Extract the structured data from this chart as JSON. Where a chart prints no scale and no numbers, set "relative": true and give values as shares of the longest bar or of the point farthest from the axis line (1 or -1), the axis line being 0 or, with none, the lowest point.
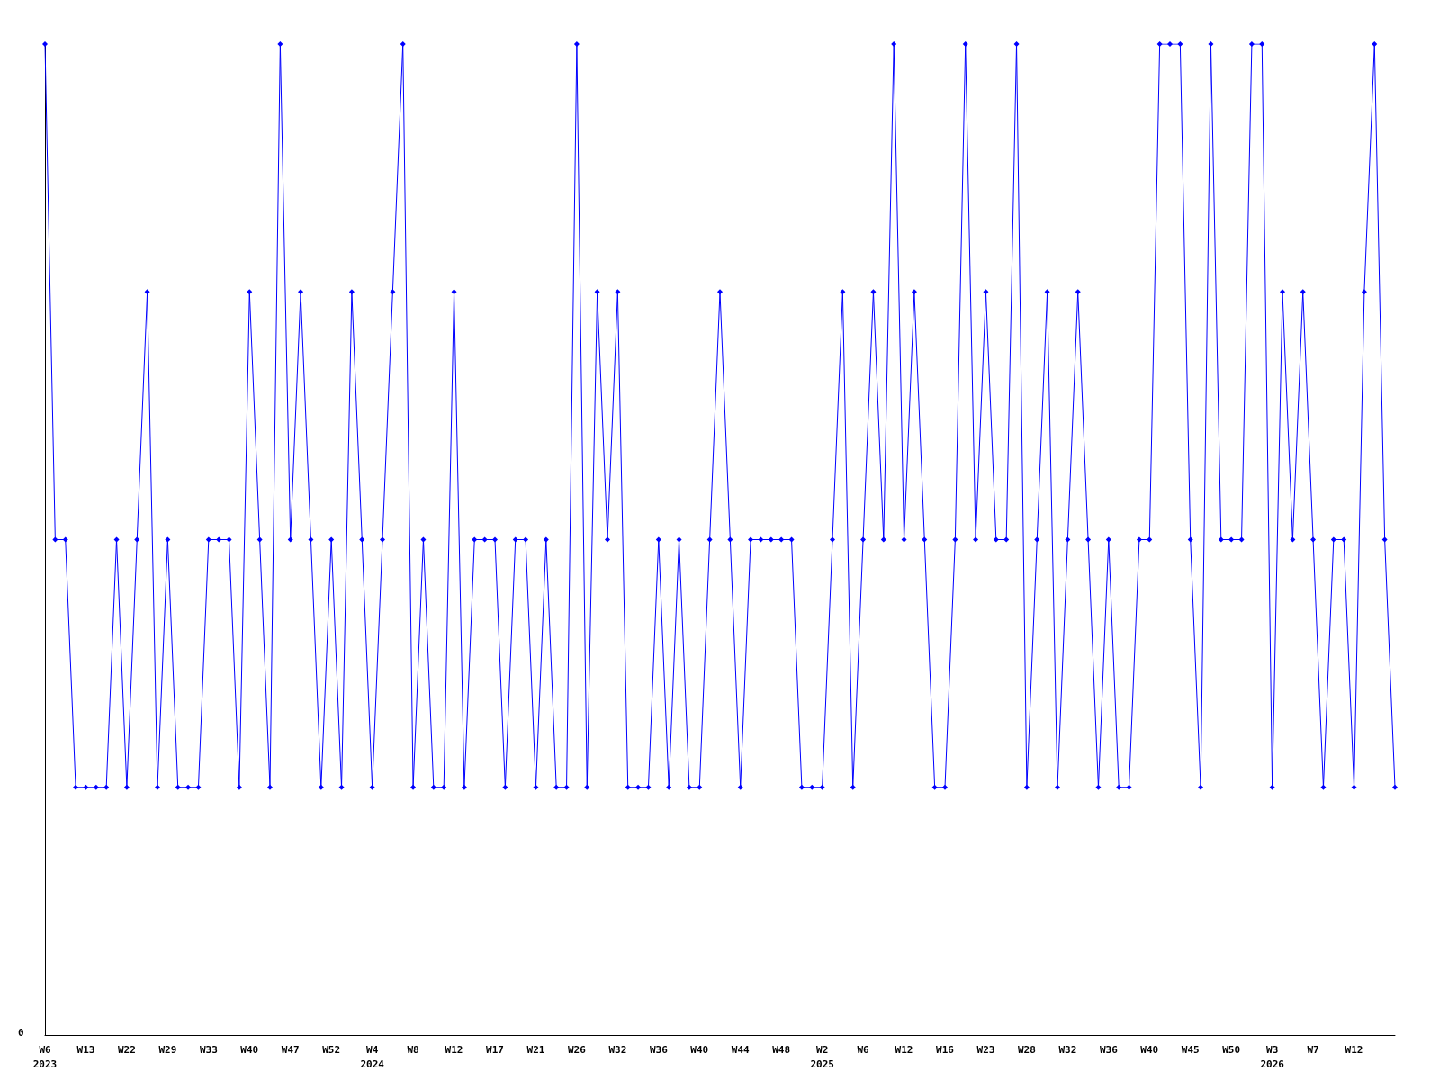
{
  "chart_data": {
    "type": "line",
    "relative": true,
    "marker": "diamond",
    "categories": [
      "W6\n2023",
      null,
      null,
      null,
      "W13",
      null,
      null,
      null,
      "W22",
      null,
      null,
      null,
      "W29",
      null,
      null,
      null,
      "W33",
      null,
      null,
      null,
      "W40",
      null,
      null,
      null,
      "W47",
      null,
      null,
      null,
      "W52",
      null,
      null,
      null,
      "W4\n2024",
      null,
      null,
      null,
      "W8",
      null,
      null,
      null,
      "W12",
      null,
      null,
      null,
      "W17",
      null,
      null,
      null,
      "W21",
      null,
      null,
      null,
      "W26",
      null,
      null,
      null,
      "W32",
      null,
      null,
      null,
      "W36",
      null,
      null,
      null,
      "W40",
      null,
      null,
      null,
      "W44",
      null,
      null,
      null,
      "W48",
      null,
      null,
      null,
      "W2\n2025",
      null,
      null,
      null,
      "W6",
      null,
      null,
      null,
      "W12",
      null,
      null,
      null,
      "W16",
      null,
      null,
      null,
      "W23",
      null,
      null,
      null,
      "W28",
      null,
      null,
      null,
      "W32",
      null,
      null,
      null,
      "W36",
      null,
      null,
      null,
      "W40",
      null,
      null,
      null,
      "W45",
      null,
      null,
      null,
      "W50",
      null,
      null,
      null,
      "W3\n2026",
      null,
      null,
      null,
      "W7",
      null,
      null,
      null,
      "W12",
      null,
      null,
      null,
      null
    ],
    "series": [
      {
        "color": "#0000ff",
        "values": [
          1,
          0.5,
          0.5,
          0.25,
          0.25,
          0.25,
          0.25,
          0.5,
          0.25,
          0.5,
          0.75,
          0.25,
          0.5,
          0.25,
          0.25,
          0.25,
          0.5,
          0.5,
          0.5,
          0.25,
          0.75,
          0.5,
          0.25,
          1,
          0.5,
          0.75,
          0.5,
          0.25,
          0.5,
          0.25,
          0.75,
          0.5,
          0.25,
          0.5,
          0.75,
          1,
          0.25,
          0.5,
          0.25,
          0.25,
          0.75,
          0.25,
          0.5,
          0.5,
          0.5,
          0.25,
          0.5,
          0.5,
          0.25,
          0.5,
          0.25,
          0.25,
          1,
          0.25,
          0.75,
          0.5,
          0.75,
          0.25,
          0.25,
          0.25,
          0.5,
          0.25,
          0.5,
          0.25,
          0.25,
          0.5,
          0.75,
          0.5,
          0.25,
          0.5,
          0.5,
          0.5,
          0.5,
          0.5,
          0.25,
          0.25,
          0.25,
          0.5,
          0.75,
          0.25,
          0.5,
          0.75,
          0.5,
          1,
          0.5,
          0.75,
          0.5,
          0.25,
          0.25,
          0.5,
          1,
          0.5,
          0.75,
          0.5,
          0.5,
          1,
          0.25,
          0.5,
          0.75,
          0.25,
          0.5,
          0.75,
          0.5,
          0.25,
          0.5,
          0.25,
          0.25,
          0.5,
          0.5,
          1,
          1,
          1,
          0.5,
          0.25,
          1,
          0.5,
          0.5,
          0.5,
          1,
          1,
          0.25,
          0.75,
          0.5,
          0.75,
          0.5,
          0.25,
          0.5,
          0.5,
          0.25,
          0.75,
          1,
          0.5,
          0.25
        ]
      }
    ],
    "annotations": [
      "0"
    ]
  }
}
